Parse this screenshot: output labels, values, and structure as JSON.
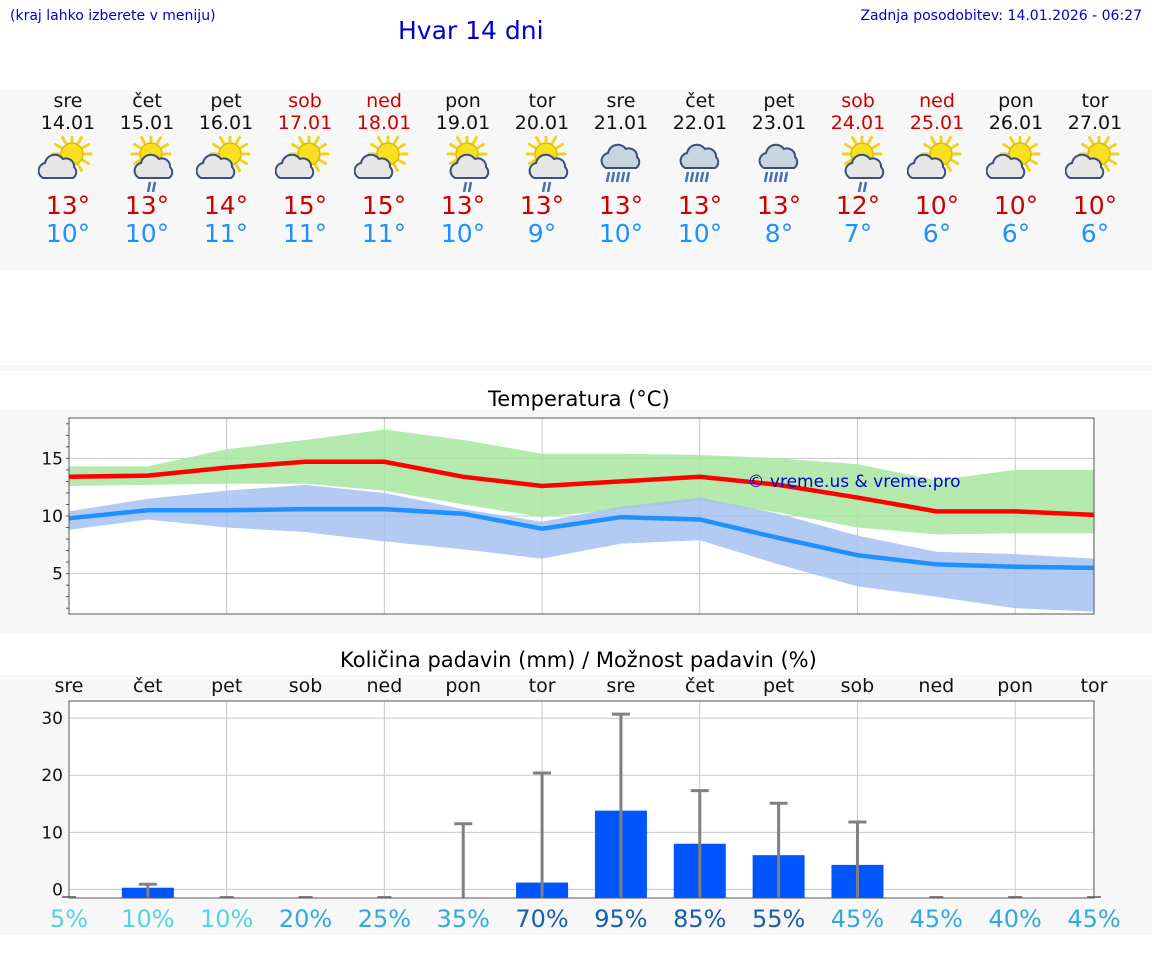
{
  "header": {
    "hint": "(kraj lahko izberete v meniju)",
    "title": "Hvar 14 dni",
    "updated": "Zadnja posodobitev: 14.01.2026 - 06:27"
  },
  "days": [
    {
      "name": "sre",
      "date": "14.01",
      "weekend": false,
      "icon": "partly-cloudy-icon",
      "max": "13°",
      "min": "10°"
    },
    {
      "name": "čet",
      "date": "15.01",
      "weekend": false,
      "icon": "partly-cloudy-rain-icon",
      "max": "13°",
      "min": "10°"
    },
    {
      "name": "pet",
      "date": "16.01",
      "weekend": false,
      "icon": "partly-cloudy-icon",
      "max": "14°",
      "min": "11°"
    },
    {
      "name": "sob",
      "date": "17.01",
      "weekend": true,
      "icon": "partly-cloudy-icon",
      "max": "15°",
      "min": "11°"
    },
    {
      "name": "ned",
      "date": "18.01",
      "weekend": true,
      "icon": "partly-cloudy-icon",
      "max": "15°",
      "min": "11°"
    },
    {
      "name": "pon",
      "date": "19.01",
      "weekend": false,
      "icon": "partly-cloudy-rain-icon",
      "max": "13°",
      "min": "10°"
    },
    {
      "name": "tor",
      "date": "20.01",
      "weekend": false,
      "icon": "partly-cloudy-rain-icon",
      "max": "13°",
      "min": "9°"
    },
    {
      "name": "sre",
      "date": "21.01",
      "weekend": false,
      "icon": "cloudy-rain-icon",
      "max": "13°",
      "min": "10°"
    },
    {
      "name": "čet",
      "date": "22.01",
      "weekend": false,
      "icon": "cloudy-rain-icon",
      "max": "13°",
      "min": "10°"
    },
    {
      "name": "pet",
      "date": "23.01",
      "weekend": false,
      "icon": "cloudy-rain-icon",
      "max": "13°",
      "min": "8°"
    },
    {
      "name": "sob",
      "date": "24.01",
      "weekend": true,
      "icon": "partly-cloudy-rain-icon",
      "max": "12°",
      "min": "7°"
    },
    {
      "name": "ned",
      "date": "25.01",
      "weekend": true,
      "icon": "partly-cloudy-icon",
      "max": "10°",
      "min": "6°"
    },
    {
      "name": "pon",
      "date": "26.01",
      "weekend": false,
      "icon": "partly-cloudy-icon",
      "max": "10°",
      "min": "6°"
    },
    {
      "name": "tor",
      "date": "27.01",
      "weekend": false,
      "icon": "partly-cloudy-icon",
      "max": "10°",
      "min": "6°"
    }
  ],
  "colors": {
    "max_line": "#ff0000",
    "min_line": "#1e90ff",
    "max_band": "#a8e6a1",
    "min_band": "#a6c2f0",
    "bars": "#0055ff",
    "error": "#808080"
  },
  "chart_data": [
    {
      "type": "line",
      "title": "Temperatura (°C)",
      "watermark": "© vreme.us & vreme.pro",
      "x": [
        "sre",
        "čet",
        "pet",
        "sob",
        "ned",
        "pon",
        "tor",
        "sre",
        "čet",
        "pet",
        "sob",
        "ned",
        "pon",
        "tor"
      ],
      "ylim": [
        1.5,
        18.5
      ],
      "yticks": [
        "5",
        "10",
        "15"
      ],
      "series": [
        {
          "name": "max",
          "values": [
            13.4,
            13.5,
            14.2,
            14.7,
            14.7,
            13.4,
            12.6,
            13.0,
            13.4,
            12.7,
            11.6,
            10.4,
            10.4,
            10.1
          ],
          "band_low": [
            12.6,
            12.7,
            12.8,
            12.8,
            12.2,
            11.0,
            9.9,
            10.6,
            11.3,
            10.3,
            9.0,
            8.4,
            8.5,
            8.5
          ],
          "band_high": [
            14.3,
            14.3,
            15.8,
            16.6,
            17.5,
            16.6,
            15.4,
            15.4,
            15.3,
            15.0,
            14.5,
            13.1,
            14.0,
            14.0
          ]
        },
        {
          "name": "min",
          "values": [
            9.8,
            10.5,
            10.5,
            10.6,
            10.6,
            10.2,
            8.9,
            9.9,
            9.7,
            8.1,
            6.6,
            5.8,
            5.6,
            5.5
          ],
          "band_low": [
            8.8,
            9.7,
            9.0,
            8.6,
            7.8,
            7.1,
            6.3,
            7.6,
            7.9,
            5.8,
            3.9,
            3.0,
            2.0,
            1.7
          ],
          "band_high": [
            10.4,
            11.5,
            12.2,
            12.7,
            12.0,
            10.6,
            9.5,
            10.8,
            11.6,
            10.2,
            8.3,
            6.9,
            6.7,
            6.3
          ]
        }
      ]
    },
    {
      "type": "bar",
      "title": "Količina padavin (mm) / Možnost padavin (%)",
      "categories": [
        "sre",
        "čet",
        "pet",
        "sob",
        "ned",
        "pon",
        "tor",
        "sre",
        "čet",
        "pet",
        "sob",
        "ned",
        "pon",
        "tor"
      ],
      "values": [
        0,
        0.3,
        0,
        0,
        0,
        0,
        1.2,
        13.8,
        8.0,
        6.0,
        4.3,
        0,
        0,
        0
      ],
      "error_high": [
        0,
        0.9,
        0,
        0,
        0,
        11.5,
        20.4,
        30.7,
        17.3,
        15.1,
        11.8,
        0,
        0,
        0
      ],
      "ylim": [
        -1.5,
        33
      ],
      "yticks": [
        "0",
        "10",
        "20",
        "30"
      ],
      "probability": [
        "5%",
        "10%",
        "10%",
        "20%",
        "25%",
        "35%",
        "70%",
        "95%",
        "85%",
        "55%",
        "45%",
        "45%",
        "40%",
        "45%"
      ],
      "probability_colors": [
        "#55d4e0",
        "#55d4e0",
        "#55d4e0",
        "#33a9d9",
        "#33a9d9",
        "#33a9d9",
        "#1a5ea8",
        "#1a5ea8",
        "#1a5ea8",
        "#1a5ea8",
        "#33a9d9",
        "#33a9d9",
        "#33a9d9",
        "#33a9d9"
      ]
    }
  ]
}
